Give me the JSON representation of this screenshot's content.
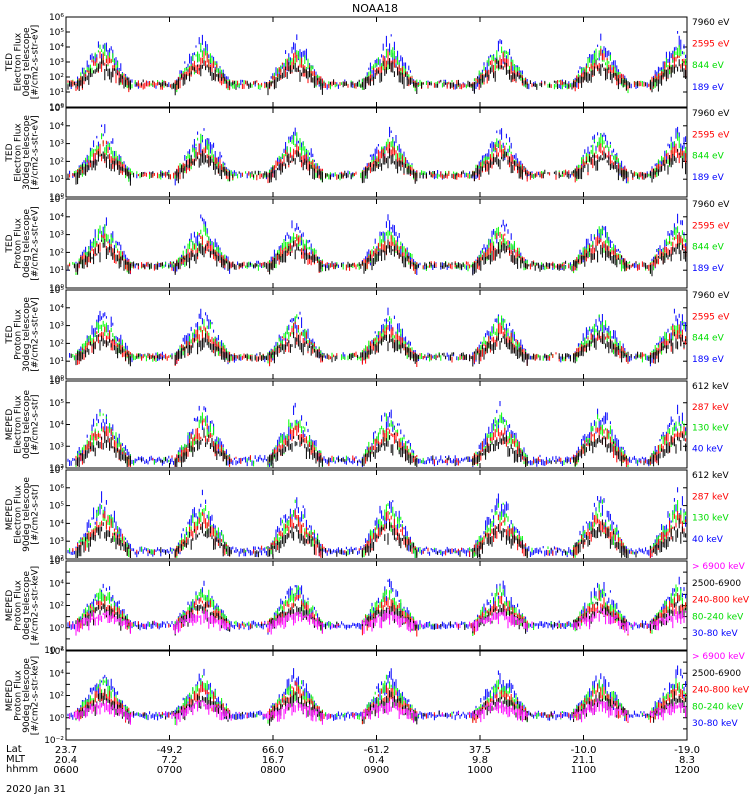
{
  "title": "NOAA18",
  "colors": {
    "blue": "#0000ff",
    "red": "#ff0000",
    "green": "#00ff00",
    "black": "#000000",
    "magenta": "#ff00ff"
  },
  "chart_data": [
    {
      "type": "scatter",
      "title": "",
      "ylabel": [
        "TED",
        "Electron Flux",
        "0deg telescope",
        "[#/cm2-s-str-eV]"
      ],
      "ylog": true,
      "ylim_exp": [
        0,
        6
      ],
      "legend": [
        {
          "label": "7960 eV",
          "color": "#000000"
        },
        {
          "label": "2595 eV",
          "color": "#ff0000"
        },
        {
          "label": "844 eV",
          "color": "#00ff00"
        },
        {
          "label": "189 eV",
          "color": "#0000ff"
        }
      ]
    },
    {
      "type": "scatter",
      "title": "",
      "ylabel": [
        "TED",
        "Electron Flux",
        "30deg telescope",
        "[#/cm2-s-str-eV]"
      ],
      "ylog": true,
      "ylim_exp": [
        0,
        5
      ],
      "legend": [
        {
          "label": "7960 eV",
          "color": "#000000"
        },
        {
          "label": "2595 eV",
          "color": "#ff0000"
        },
        {
          "label": "844 eV",
          "color": "#00ff00"
        },
        {
          "label": "189 eV",
          "color": "#0000ff"
        }
      ]
    },
    {
      "type": "scatter",
      "title": "",
      "ylabel": [
        "TED",
        "Proton Flux",
        "0deg telescope",
        "[#/cm2-s-str-eV]"
      ],
      "ylog": true,
      "ylim_exp": [
        0,
        5
      ],
      "legend": [
        {
          "label": "7960 eV",
          "color": "#000000"
        },
        {
          "label": "2595 eV",
          "color": "#ff0000"
        },
        {
          "label": "844 eV",
          "color": "#00ff00"
        },
        {
          "label": "189 eV",
          "color": "#0000ff"
        }
      ]
    },
    {
      "type": "scatter",
      "title": "",
      "ylabel": [
        "TED",
        "Proton Flux",
        "30deg telescope",
        "[#/cm2-s-str-eV]"
      ],
      "ylog": true,
      "ylim_exp": [
        0,
        5
      ],
      "legend": [
        {
          "label": "7960 eV",
          "color": "#000000"
        },
        {
          "label": "2595 eV",
          "color": "#ff0000"
        },
        {
          "label": "844 eV",
          "color": "#00ff00"
        },
        {
          "label": "189 eV",
          "color": "#0000ff"
        }
      ]
    },
    {
      "type": "scatter",
      "title": "",
      "ylabel": [
        "MEPED",
        "Electron Flux",
        "0deg telescope",
        "[#/cm2-s-str]"
      ],
      "ylog": true,
      "ylim_exp": [
        2,
        6
      ],
      "legend": [
        {
          "label": "612 keV",
          "color": "#000000"
        },
        {
          "label": "287 keV",
          "color": "#ff0000"
        },
        {
          "label": "130 keV",
          "color": "#00ff00"
        },
        {
          "label": "40 keV",
          "color": "#0000ff"
        }
      ]
    },
    {
      "type": "scatter",
      "title": "",
      "ylabel": [
        "MEPED",
        "Electron Flux",
        "90deg telescope",
        "[#/cm2-s-str]"
      ],
      "ylog": true,
      "ylim_exp": [
        2,
        7
      ],
      "legend": [
        {
          "label": "612 keV",
          "color": "#000000"
        },
        {
          "label": "287 keV",
          "color": "#ff0000"
        },
        {
          "label": "130 keV",
          "color": "#00ff00"
        },
        {
          "label": "40 keV",
          "color": "#0000ff"
        }
      ]
    },
    {
      "type": "scatter",
      "title": "",
      "ylabel": [
        "MEPED",
        "Proton Flux",
        "0deg telescope",
        "[#/cm2-s-str-keV]"
      ],
      "ylog": true,
      "ylim_exp": [
        -2,
        6
      ],
      "legend": [
        {
          "label": "> 6900 keV",
          "color": "#ff00ff"
        },
        {
          "label": "2500-6900",
          "color": "#000000"
        },
        {
          "label": "240-800 keV",
          "color": "#ff0000"
        },
        {
          "label": "80-240 keV",
          "color": "#00ff00"
        },
        {
          "label": "30-80 keV",
          "color": "#0000ff"
        }
      ]
    },
    {
      "type": "scatter",
      "title": "",
      "ylabel": [
        "MEPED",
        "Proton Flux",
        "90deg telescope",
        "[#/cm2-s-str-keV]"
      ],
      "ylog": true,
      "ylim_exp": [
        -2,
        6
      ],
      "legend": [
        {
          "label": "> 6900 keV",
          "color": "#ff00ff"
        },
        {
          "label": "2500-6900",
          "color": "#000000"
        },
        {
          "label": "240-800 keV",
          "color": "#ff0000"
        },
        {
          "label": "80-240 keV",
          "color": "#00ff00"
        },
        {
          "label": "30-80 keV",
          "color": "#0000ff"
        }
      ]
    }
  ],
  "xaxis": {
    "row_labels": [
      "Lat",
      "MLT",
      "hhmm"
    ],
    "ticks": [
      {
        "lat": "23.7",
        "mlt": "20.4",
        "hhmm": "0600"
      },
      {
        "lat": "-49.2",
        "mlt": "7.2",
        "hhmm": "0700"
      },
      {
        "lat": "66.0",
        "mlt": "16.7",
        "hhmm": "0800"
      },
      {
        "lat": "-61.2",
        "mlt": "0.4",
        "hhmm": "0900"
      },
      {
        "lat": "37.5",
        "mlt": "9.8",
        "hhmm": "1000"
      },
      {
        "lat": "-10.0",
        "mlt": "21.1",
        "hhmm": "1100"
      },
      {
        "lat": "-19.0",
        "mlt": "8.3",
        "hhmm": "1200"
      }
    ],
    "date": "2020 Jan 31"
  }
}
